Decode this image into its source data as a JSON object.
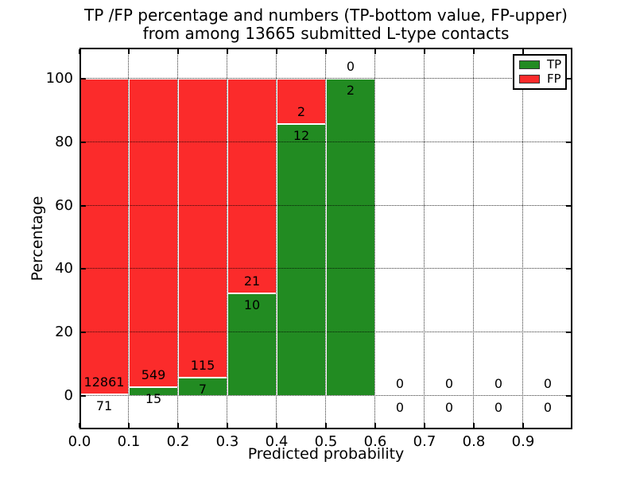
{
  "title": {
    "line1": "TP /FP percentage and numbers (TP-bottom value, FP-upper)",
    "line2": "from among 13665 submitted L-type contacts"
  },
  "axes": {
    "xlabel": "Predicted probability",
    "ylabel": "Percentage",
    "xticks": [
      "0.0",
      "0.1",
      "0.2",
      "0.3",
      "0.4",
      "0.5",
      "0.6",
      "0.7",
      "0.8",
      "0.9"
    ],
    "yticks": [
      0,
      20,
      40,
      60,
      80,
      100
    ]
  },
  "legend": [
    {
      "label": "TP",
      "color": "#228b22"
    },
    {
      "label": "FP",
      "color": "#fb2b2b"
    }
  ],
  "colors": {
    "tp_green": "#228b22",
    "fp_red": "#fb2b2b",
    "frame": "#000000",
    "background": "#ffffff"
  },
  "chart_data": {
    "type": "bar",
    "stacked": true,
    "title": "TP /FP percentage and numbers (TP-bottom value, FP-upper) from among 13665 submitted L-type contacts",
    "xlabel": "Predicted probability",
    "ylabel": "Percentage",
    "xlim": [
      0.0,
      1.0
    ],
    "ylim": [
      -10.5,
      109.8
    ],
    "grid": "dotted",
    "legend_position": "upper right",
    "bin_width": 0.1,
    "bin_starts": [
      0.0,
      0.1,
      0.2,
      0.3,
      0.4,
      0.5,
      0.6,
      0.7,
      0.8,
      0.9
    ],
    "series": [
      {
        "name": "TP",
        "color": "#228b22",
        "counts": [
          71,
          15,
          7,
          10,
          12,
          2,
          0,
          0,
          0,
          0
        ]
      },
      {
        "name": "FP",
        "color": "#fb2b2b",
        "counts": [
          12861,
          549,
          115,
          21,
          2,
          0,
          0,
          0,
          0,
          0
        ]
      }
    ],
    "percent_tp": [
      0.55,
      2.66,
      5.74,
      32.26,
      85.71,
      100.0,
      0,
      0,
      0,
      0
    ],
    "percent_fp": [
      99.45,
      97.34,
      94.26,
      67.74,
      14.29,
      0.0,
      0,
      0,
      0,
      0
    ],
    "total_submitted": 13665
  }
}
